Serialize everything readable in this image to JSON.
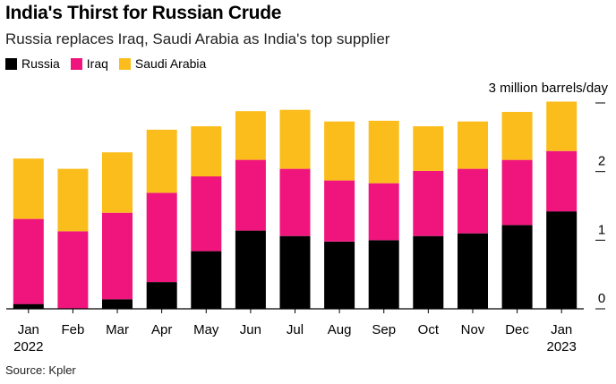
{
  "title": "India's Thirst for Russian Crude",
  "subtitle": "Russia replaces Iraq, Saudi Arabia as India's top supplier",
  "source": "Source: Kpler",
  "chart_data": {
    "type": "bar",
    "stacked": true,
    "categories": [
      "Jan",
      "Feb",
      "Mar",
      "Apr",
      "May",
      "Jun",
      "Jul",
      "Aug",
      "Sep",
      "Oct",
      "Nov",
      "Dec",
      "Jan"
    ],
    "category_sublabels": [
      "2022",
      "",
      "",
      "",
      "",
      "",
      "",
      "",
      "",
      "",
      "",
      "",
      "2023"
    ],
    "series": [
      {
        "name": "Russia",
        "color": "#000000",
        "values": [
          0.07,
          0,
          0.14,
          0.39,
          0.84,
          1.14,
          1.06,
          0.98,
          1.0,
          1.06,
          1.1,
          1.22,
          1.42
        ]
      },
      {
        "name": "Iraq",
        "color": "#f0147d",
        "values": [
          1.24,
          1.13,
          1.26,
          1.3,
          1.09,
          1.03,
          0.98,
          0.89,
          0.83,
          0.95,
          0.94,
          0.95,
          0.88
        ]
      },
      {
        "name": "Saudi Arabia",
        "color": "#fbbd1b",
        "values": [
          0.88,
          0.91,
          0.88,
          0.92,
          0.73,
          0.71,
          0.86,
          0.86,
          0.91,
          0.65,
          0.69,
          0.7,
          0.72
        ]
      }
    ],
    "y_unit_label": "3 million barrels/day",
    "y_ticks": [
      0,
      1,
      2,
      3
    ],
    "y_tick_labels": [
      "0",
      "1",
      "2",
      ""
    ],
    "ylim": [
      0,
      3
    ],
    "grid": false,
    "legend_position": "top-left"
  }
}
